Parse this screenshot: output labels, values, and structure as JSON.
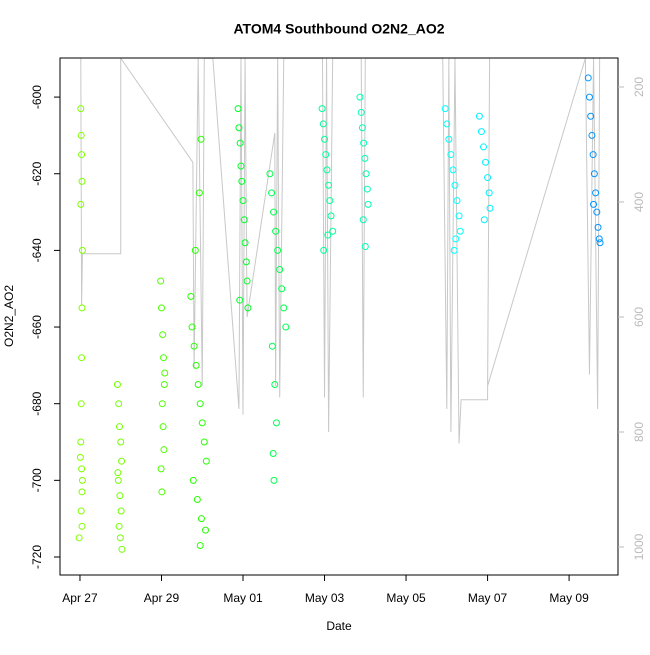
{
  "chart_data": {
    "type": "scatter",
    "title": "ATOM4 Southbound O2N2_AO2",
    "x_label": "Date",
    "y_label": "O2N2_AO2",
    "xlim": [
      -0.49,
      13.2
    ],
    "xticks": [
      {
        "value": 0,
        "label": "Apr 27"
      },
      {
        "value": 2,
        "label": "Apr 29"
      },
      {
        "value": 4,
        "label": "May 01"
      },
      {
        "value": 6,
        "label": "May 03"
      },
      {
        "value": 8,
        "label": "May 05"
      },
      {
        "value": 10,
        "label": "May 07"
      },
      {
        "value": 12,
        "label": "May 09"
      }
    ],
    "ylim": [
      -724.7,
      -589.8
    ],
    "yticks": [
      -600,
      -620,
      -640,
      -660,
      -680,
      -700,
      -720
    ],
    "y2lim": [
      1048.7,
      149.6
    ],
    "y2ticks": [
      200,
      400,
      600,
      800,
      1000
    ],
    "y2_color": "#bbbbbb",
    "series": [
      {
        "type": "line",
        "axis": "y2",
        "color": "#c8c8c8",
        "x": [
          0.02,
          0.04,
          0.06,
          1.0,
          1.0,
          2.77,
          2.8,
          2.9,
          3.0,
          3.05,
          3.26,
          3.9,
          3.95,
          4.0,
          4.05,
          4.1,
          4.78,
          4.8,
          4.85,
          4.9,
          5.0,
          5.95,
          6.0,
          6.05,
          6.1,
          6.2,
          6.9,
          6.95,
          7.0,
          8.9,
          9.0,
          9.05,
          9.1,
          9.2,
          9.3,
          9.35,
          9.6,
          10.0,
          10.05,
          10.0,
          12.4,
          12.5,
          12.6,
          12.7,
          12.75
        ],
        "values": [
          150,
          580,
          490,
          490,
          150,
          331,
          690,
          150,
          720,
          150,
          150,
          760,
          150,
          770,
          150,
          600,
          280,
          720,
          150,
          740,
          150,
          150,
          740,
          150,
          800,
          150,
          150,
          740,
          150,
          150,
          760,
          150,
          800,
          150,
          820,
          744,
          744,
          744,
          150,
          720,
          150,
          700,
          150,
          760,
          150
        ]
      },
      {
        "type": "scatter",
        "color": "#80ff00",
        "x": [
          0.02,
          0.03,
          0.04,
          0.05,
          0.02,
          0.06,
          0.05,
          0.04,
          0.03,
          0.02,
          0.04,
          0.05,
          0.03,
          0.05,
          -0.02,
          0.06,
          0.01
        ],
        "values": [
          -603,
          -610,
          -615,
          -622,
          -628,
          -640,
          -655,
          -668,
          -680,
          -690,
          -697,
          -703,
          -708,
          -712,
          -715,
          -700,
          -694
        ]
      },
      {
        "type": "scatter",
        "color": "#73ff00",
        "x": [
          0.92,
          0.95,
          0.97,
          1.0,
          1.02,
          0.94,
          0.98,
          1.01,
          0.96,
          0.99,
          1.03,
          0.93
        ],
        "values": [
          -675,
          -680,
          -686,
          -690,
          -695,
          -700,
          -704,
          -708,
          -712,
          -715,
          -718,
          -698
        ]
      },
      {
        "type": "scatter",
        "color": "#4dff00",
        "x": [
          1.98,
          2.0,
          2.03,
          2.05,
          2.07,
          2.02,
          2.04,
          2.06,
          1.99,
          2.01,
          2.08
        ],
        "values": [
          -648,
          -655,
          -662,
          -668,
          -675,
          -680,
          -686,
          -692,
          -697,
          -703,
          -672
        ]
      },
      {
        "type": "scatter",
        "color": "#26ff00",
        "x": [
          2.72,
          2.75,
          2.8,
          2.85,
          2.9,
          2.95,
          3.0,
          3.05,
          3.1,
          2.78,
          2.88,
          2.98,
          3.08,
          2.95,
          2.97,
          2.93,
          2.83
        ],
        "values": [
          -652,
          -660,
          -665,
          -670,
          -675,
          -680,
          -685,
          -690,
          -695,
          -700,
          -705,
          -710,
          -713,
          -717,
          -611,
          -625,
          -640
        ]
      },
      {
        "type": "scatter",
        "color": "#00ff26",
        "x": [
          3.88,
          3.9,
          3.93,
          3.95,
          3.97,
          4.0,
          4.03,
          4.05,
          4.08,
          4.1,
          3.92,
          4.12
        ],
        "values": [
          -603,
          -608,
          -612,
          -618,
          -622,
          -627,
          -632,
          -638,
          -643,
          -648,
          -653,
          -655
        ]
      },
      {
        "type": "scatter",
        "color": "#00ff4d",
        "x": [
          4.66,
          4.7,
          4.75,
          4.8,
          4.85,
          4.9,
          4.95,
          5.0,
          5.05,
          4.72,
          4.78,
          4.82,
          4.74,
          4.76
        ],
        "values": [
          -620,
          -625,
          -630,
          -635,
          -640,
          -645,
          -650,
          -655,
          -660,
          -665,
          -675,
          -685,
          -693,
          -700
        ]
      },
      {
        "type": "scatter",
        "color": "#00ff99",
        "x": [
          5.94,
          5.97,
          6.0,
          6.03,
          6.06,
          6.1,
          6.13,
          6.16,
          6.2,
          5.98,
          6.08
        ],
        "values": [
          -603,
          -607,
          -611,
          -615,
          -619,
          -623,
          -627,
          -631,
          -635,
          -640,
          -636
        ]
      },
      {
        "type": "scatter",
        "color": "#00ffb3",
        "x": [
          6.87,
          6.9,
          6.93,
          6.96,
          6.99,
          7.02,
          7.05,
          7.07,
          6.95,
          7.0
        ],
        "values": [
          -600,
          -604,
          -608,
          -612,
          -616,
          -620,
          -624,
          -628,
          -632,
          -639
        ]
      },
      {
        "type": "scatter",
        "color": "#00ffff",
        "x": [
          8.96,
          9.0,
          9.05,
          9.1,
          9.15,
          9.2,
          9.25,
          9.3,
          9.33,
          9.18,
          9.22
        ],
        "values": [
          -603,
          -607,
          -611,
          -615,
          -619,
          -623,
          -627,
          -631,
          -635,
          -640,
          -637
        ]
      },
      {
        "type": "scatter",
        "color": "#00f2ff",
        "x": [
          9.8,
          9.85,
          9.9,
          9.95,
          10.0,
          10.04,
          10.06,
          9.92
        ],
        "values": [
          -605,
          -609,
          -613,
          -617,
          -621,
          -625,
          -629,
          -632
        ]
      },
      {
        "type": "scatter",
        "color": "#0095ff",
        "x": [
          12.47,
          12.5,
          12.53,
          12.56,
          12.59,
          12.62,
          12.65,
          12.68,
          12.71,
          12.74,
          12.76,
          12.6
        ],
        "values": [
          -595,
          -600,
          -605,
          -610,
          -615,
          -620,
          -625,
          -630,
          -634,
          -637,
          -638,
          -628
        ]
      }
    ]
  }
}
